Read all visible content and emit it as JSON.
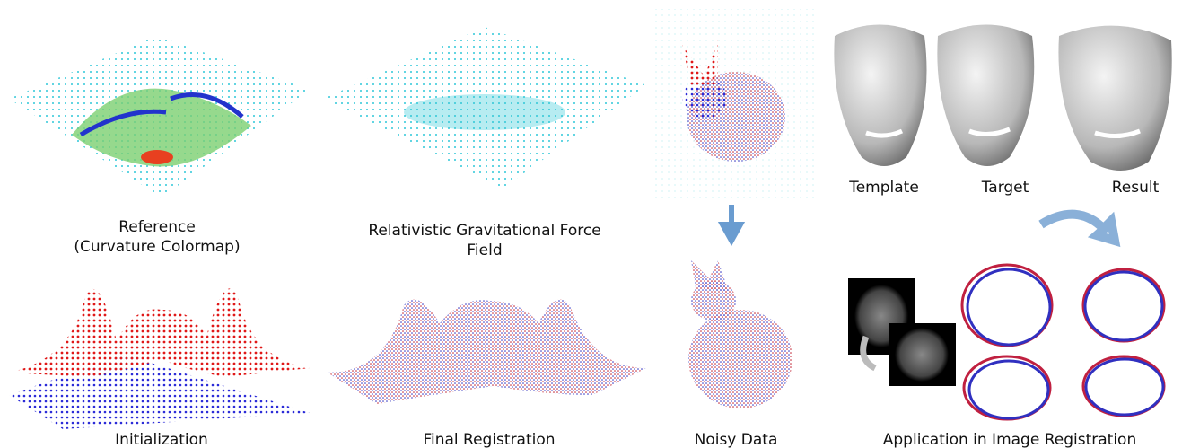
{
  "panels": [
    {
      "caption": [
        "Reference",
        "(Curvature Colormap)"
      ]
    },
    {
      "caption": [
        "Relativistic Gravitational Force",
        "Field"
      ]
    },
    {
      "caption": [
        "Initialization"
      ]
    },
    {
      "caption": [
        "Final Registration"
      ]
    },
    {
      "caption": [
        "Noisy Data"
      ]
    },
    {
      "labels": [
        "Template",
        "Target",
        "Result"
      ]
    },
    {
      "caption": [
        "Application in Image Registration"
      ]
    }
  ]
}
